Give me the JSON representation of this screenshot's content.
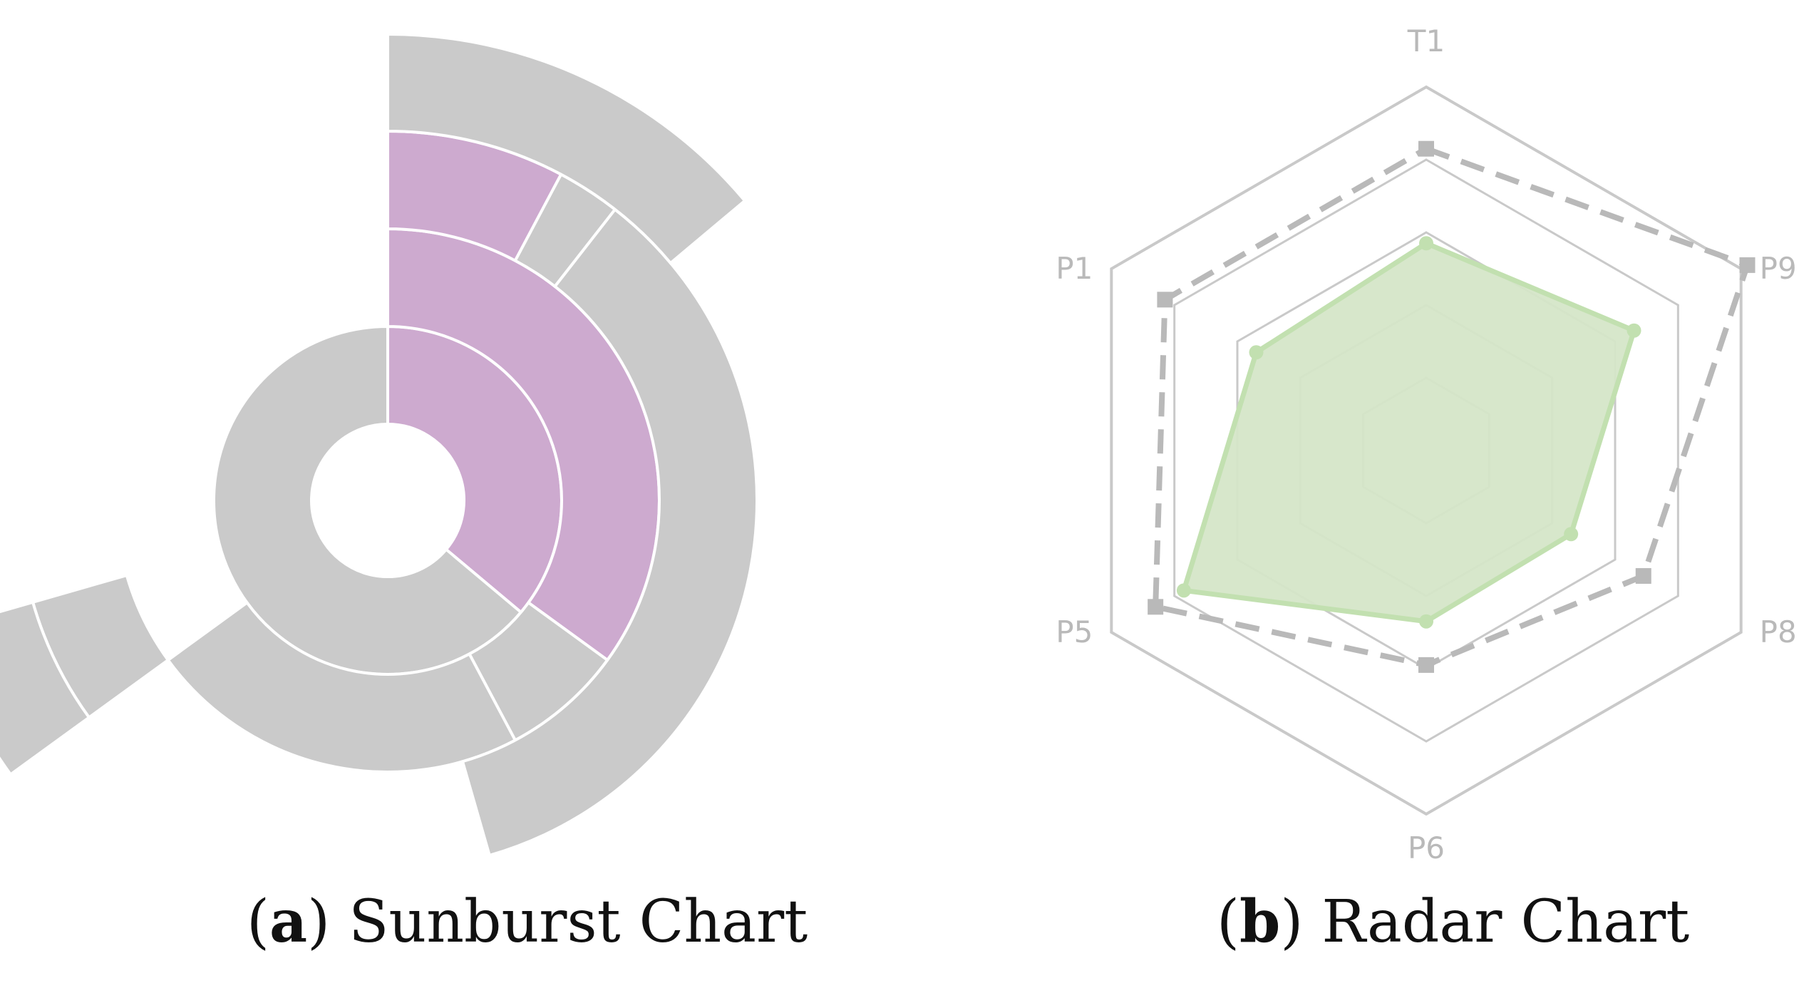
{
  "captions": {
    "a": {
      "letter": "a",
      "text": " Sunburst Chart"
    },
    "b": {
      "letter": "b",
      "text": " Radar Chart"
    }
  },
  "colors": {
    "highlight": "#cdaacf",
    "neutral": "#cacaca",
    "radar_series_fill": "#d5e6c8",
    "radar_series_stroke": "#c2e0b0",
    "radar_dashed": "#b9b9b9",
    "grid": "#c9c9c9"
  },
  "chart_data": [
    {
      "type": "sunburst",
      "rings": [
        {
          "level": 1,
          "segments": [
            {
              "start_deg": 0,
              "end_deg": 130,
              "highlight": true
            },
            {
              "start_deg": 130,
              "end_deg": 360,
              "highlight": false
            }
          ]
        },
        {
          "level": 2,
          "segments": [
            {
              "start_deg": 0,
              "end_deg": 126,
              "highlight": true
            },
            {
              "start_deg": 126,
              "end_deg": 152,
              "highlight": false
            },
            {
              "start_deg": 152,
              "end_deg": 234,
              "highlight": false
            }
          ]
        },
        {
          "level": 3,
          "segments": [
            {
              "start_deg": 0,
              "end_deg": 28,
              "highlight": true
            },
            {
              "start_deg": 28,
              "end_deg": 38,
              "highlight": false
            },
            {
              "start_deg": 38,
              "end_deg": 164,
              "highlight": false
            },
            {
              "start_deg": 234,
              "end_deg": 254,
              "highlight": false
            }
          ]
        },
        {
          "level": 4,
          "segments": [
            {
              "start_deg": 0,
              "end_deg": 50,
              "highlight": false
            },
            {
              "start_deg": 234,
              "end_deg": 254,
              "highlight": false
            }
          ]
        }
      ]
    },
    {
      "type": "radar",
      "axes": [
        "T1",
        "P9",
        "P8",
        "P6",
        "P5",
        "P1"
      ],
      "grid_levels": 5,
      "series": [
        {
          "style": "filled",
          "values": [
            0.57,
            0.66,
            0.46,
            0.47,
            0.77,
            0.54
          ]
        },
        {
          "style": "dashed",
          "values": [
            0.83,
            1.02,
            0.69,
            0.59,
            0.86,
            0.83
          ]
        }
      ]
    }
  ]
}
